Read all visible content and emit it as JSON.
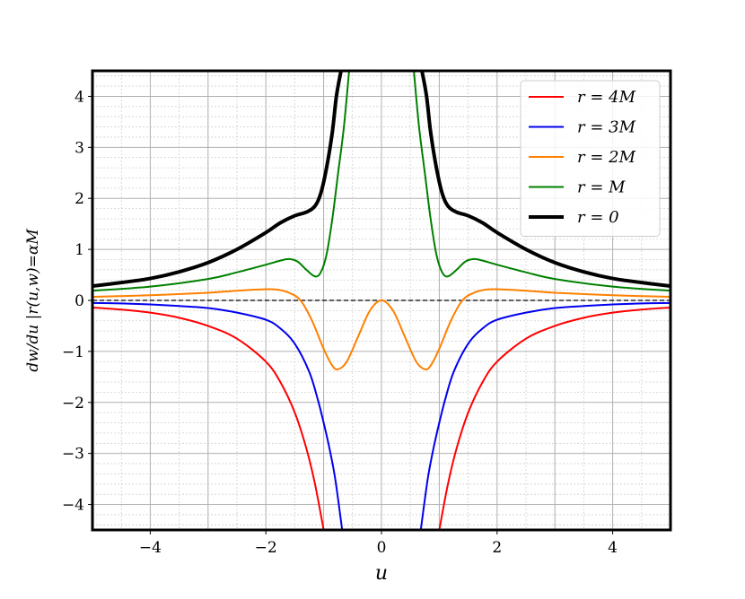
{
  "chart_data": {
    "type": "line",
    "title": "",
    "xlabel": "u",
    "ylabel": "dw/du |r(u,w)=αM",
    "xlim": [
      -5,
      5
    ],
    "ylim": [
      -4.5,
      4.5
    ],
    "xticks": [
      -4,
      -2,
      0,
      2,
      4
    ],
    "xtick_labels": [
      "−4",
      "−2",
      "0",
      "2",
      "4"
    ],
    "yticks": [
      -4,
      -3,
      -2,
      -1,
      0,
      1,
      2,
      3,
      4
    ],
    "ytick_labels": [
      "−4",
      "−3",
      "−2",
      "−1",
      "0",
      "1",
      "2",
      "3",
      "4"
    ],
    "grid": true,
    "minor_grid": true,
    "reference_line": {
      "y": 0,
      "style": "dashed",
      "color": "#000000"
    },
    "legend_position": "top-right",
    "series": [
      {
        "name": "r = 4M",
        "color": "#ff0000",
        "width": "normal",
        "segments": [
          [
            [
              -5,
              -0.14
            ],
            [
              -4.5,
              -0.18
            ],
            [
              -4,
              -0.24
            ],
            [
              -3.5,
              -0.34
            ],
            [
              -3,
              -0.5
            ],
            [
              -2.5,
              -0.75
            ],
            [
              -2,
              -1.2
            ],
            [
              -1.75,
              -1.6
            ],
            [
              -1.5,
              -2.2
            ],
            [
              -1.3,
              -2.9
            ],
            [
              -1.15,
              -3.6
            ],
            [
              -1,
              -4.5
            ]
          ],
          [
            [
              1,
              -4.5
            ],
            [
              1.15,
              -3.6
            ],
            [
              1.3,
              -2.9
            ],
            [
              1.5,
              -2.2
            ],
            [
              1.75,
              -1.6
            ],
            [
              2,
              -1.2
            ],
            [
              2.5,
              -0.75
            ],
            [
              3,
              -0.5
            ],
            [
              3.5,
              -0.34
            ],
            [
              4,
              -0.24
            ],
            [
              4.5,
              -0.18
            ],
            [
              5,
              -0.14
            ]
          ]
        ]
      },
      {
        "name": "r = 3M",
        "color": "#0000ee",
        "width": "normal",
        "segments": [
          [
            [
              -5,
              -0.05
            ],
            [
              -4.5,
              -0.06
            ],
            [
              -4,
              -0.08
            ],
            [
              -3.5,
              -0.11
            ],
            [
              -3,
              -0.15
            ],
            [
              -2.5,
              -0.24
            ],
            [
              -2,
              -0.38
            ],
            [
              -1.75,
              -0.55
            ],
            [
              -1.5,
              -0.85
            ],
            [
              -1.25,
              -1.4
            ],
            [
              -1.1,
              -1.95
            ],
            [
              -1,
              -2.4
            ],
            [
              -0.9,
              -2.9
            ],
            [
              -0.8,
              -3.5
            ],
            [
              -0.68,
              -4.5
            ]
          ],
          [
            [
              0.68,
              -4.5
            ],
            [
              0.8,
              -3.5
            ],
            [
              0.9,
              -2.9
            ],
            [
              1,
              -2.4
            ],
            [
              1.1,
              -1.95
            ],
            [
              1.25,
              -1.4
            ],
            [
              1.5,
              -0.85
            ],
            [
              1.75,
              -0.55
            ],
            [
              2,
              -0.38
            ],
            [
              2.5,
              -0.24
            ],
            [
              3,
              -0.15
            ],
            [
              3.5,
              -0.11
            ],
            [
              4,
              -0.08
            ],
            [
              4.5,
              -0.06
            ],
            [
              5,
              -0.05
            ]
          ]
        ]
      },
      {
        "name": "r = 2M",
        "color": "#ff8000",
        "width": "normal",
        "segments": [
          [
            [
              -5,
              0.07
            ],
            [
              -4,
              0.1
            ],
            [
              -3,
              0.15
            ],
            [
              -2.5,
              0.19
            ],
            [
              -2,
              0.22
            ],
            [
              -1.8,
              0.21
            ],
            [
              -1.6,
              0.15
            ],
            [
              -1.4,
              0.0
            ],
            [
              -1.2,
              -0.4
            ],
            [
              -1,
              -0.95
            ],
            [
              -0.85,
              -1.28
            ],
            [
              -0.75,
              -1.35
            ],
            [
              -0.6,
              -1.2
            ],
            [
              -0.4,
              -0.7
            ],
            [
              -0.2,
              -0.2
            ],
            [
              0,
              0.0
            ],
            [
              0.2,
              -0.2
            ],
            [
              0.4,
              -0.7
            ],
            [
              0.6,
              -1.2
            ],
            [
              0.75,
              -1.35
            ],
            [
              0.85,
              -1.28
            ],
            [
              1,
              -0.95
            ],
            [
              1.2,
              -0.4
            ],
            [
              1.4,
              0.0
            ],
            [
              1.6,
              0.15
            ],
            [
              1.8,
              0.21
            ],
            [
              2,
              0.22
            ],
            [
              2.5,
              0.19
            ],
            [
              3,
              0.15
            ],
            [
              4,
              0.1
            ],
            [
              5,
              0.07
            ]
          ]
        ]
      },
      {
        "name": "r = M",
        "color": "#008000",
        "width": "normal",
        "segments": [
          [
            [
              -5,
              0.19
            ],
            [
              -4,
              0.27
            ],
            [
              -3,
              0.42
            ],
            [
              -2.5,
              0.55
            ],
            [
              -2,
              0.7
            ],
            [
              -1.75,
              0.78
            ],
            [
              -1.6,
              0.81
            ],
            [
              -1.45,
              0.76
            ],
            [
              -1.3,
              0.6
            ],
            [
              -1.15,
              0.47
            ],
            [
              -1.05,
              0.55
            ],
            [
              -0.95,
              0.9
            ],
            [
              -0.85,
              1.6
            ],
            [
              -0.75,
              2.5
            ],
            [
              -0.65,
              3.4
            ],
            [
              -0.56,
              4.5
            ]
          ],
          [
            [
              0.56,
              4.5
            ],
            [
              0.65,
              3.4
            ],
            [
              0.75,
              2.5
            ],
            [
              0.85,
              1.6
            ],
            [
              0.95,
              0.9
            ],
            [
              1.05,
              0.55
            ],
            [
              1.15,
              0.47
            ],
            [
              1.3,
              0.6
            ],
            [
              1.45,
              0.76
            ],
            [
              1.6,
              0.81
            ],
            [
              1.75,
              0.78
            ],
            [
              2,
              0.7
            ],
            [
              2.5,
              0.55
            ],
            [
              3,
              0.42
            ],
            [
              4,
              0.27
            ],
            [
              5,
              0.19
            ]
          ]
        ]
      },
      {
        "name": "r = 0",
        "color": "#000000",
        "width": "thick",
        "segments": [
          [
            [
              -5,
              0.28
            ],
            [
              -4.5,
              0.35
            ],
            [
              -4,
              0.43
            ],
            [
              -3.5,
              0.56
            ],
            [
              -3,
              0.74
            ],
            [
              -2.5,
              1.0
            ],
            [
              -2,
              1.33
            ],
            [
              -1.75,
              1.52
            ],
            [
              -1.5,
              1.66
            ],
            [
              -1.3,
              1.73
            ],
            [
              -1.15,
              1.85
            ],
            [
              -1.05,
              2.1
            ],
            [
              -0.95,
              2.6
            ],
            [
              -0.85,
              3.3
            ],
            [
              -0.78,
              4.0
            ],
            [
              -0.7,
              4.5
            ]
          ],
          [
            [
              0.7,
              4.5
            ],
            [
              0.78,
              4.0
            ],
            [
              0.85,
              3.3
            ],
            [
              0.95,
              2.6
            ],
            [
              1.05,
              2.1
            ],
            [
              1.15,
              1.85
            ],
            [
              1.3,
              1.73
            ],
            [
              1.5,
              1.66
            ],
            [
              1.75,
              1.52
            ],
            [
              2,
              1.33
            ],
            [
              2.5,
              1.0
            ],
            [
              3,
              0.74
            ],
            [
              3.5,
              0.56
            ],
            [
              4,
              0.43
            ],
            [
              4.5,
              0.35
            ],
            [
              5,
              0.28
            ]
          ]
        ]
      }
    ]
  }
}
